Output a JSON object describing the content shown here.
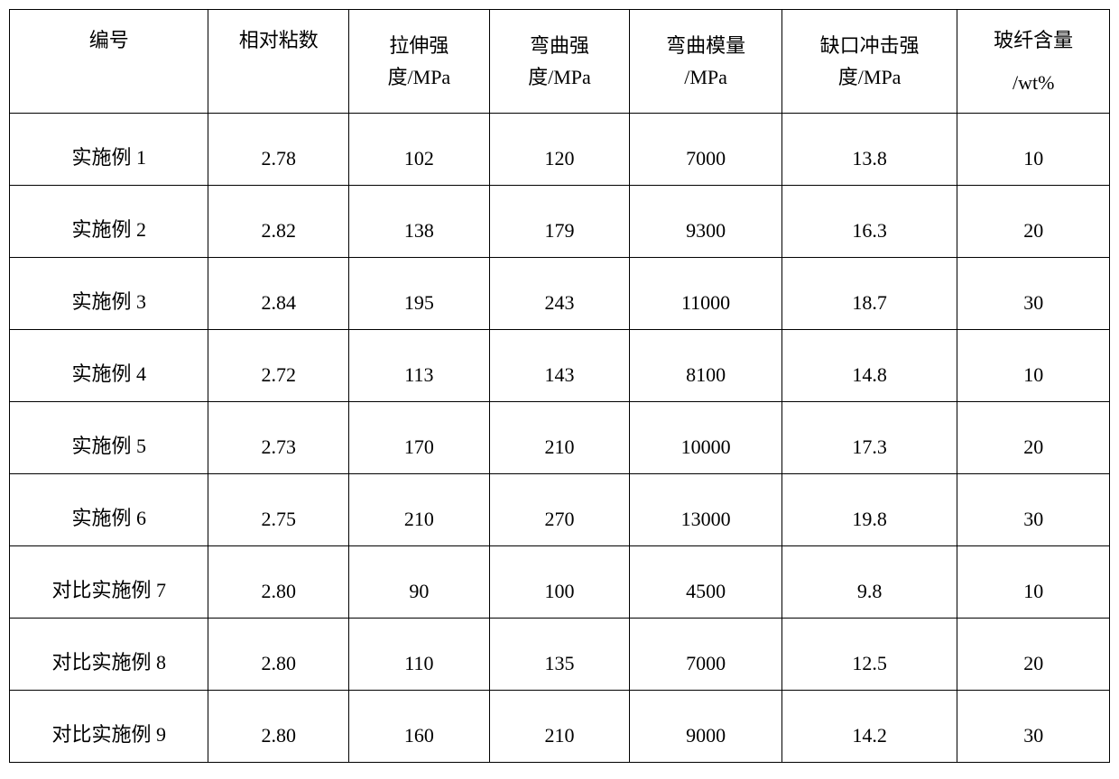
{
  "table": {
    "headers": [
      {
        "line1": "编号",
        "line2": ""
      },
      {
        "line1": "相对粘数",
        "line2": ""
      },
      {
        "line1": "拉伸强",
        "line2": "度/MPa"
      },
      {
        "line1": "弯曲强",
        "line2": "度/MPa"
      },
      {
        "line1": "弯曲模量",
        "line2": "/MPa"
      },
      {
        "line1": "缺口冲击强",
        "line2": "度/MPa"
      },
      {
        "line1": "玻纤含量",
        "line2": "/wt%"
      }
    ],
    "rows": [
      {
        "c0": "实施例 1",
        "c1": "2.78",
        "c2": "102",
        "c3": "120",
        "c4": "7000",
        "c5": "13.8",
        "c6": "10"
      },
      {
        "c0": "实施例 2",
        "c1": "2.82",
        "c2": "138",
        "c3": "179",
        "c4": "9300",
        "c5": "16.3",
        "c6": "20"
      },
      {
        "c0": "实施例 3",
        "c1": "2.84",
        "c2": "195",
        "c3": "243",
        "c4": "11000",
        "c5": "18.7",
        "c6": "30"
      },
      {
        "c0": "实施例 4",
        "c1": "2.72",
        "c2": "113",
        "c3": "143",
        "c4": "8100",
        "c5": "14.8",
        "c6": "10"
      },
      {
        "c0": "实施例 5",
        "c1": "2.73",
        "c2": "170",
        "c3": "210",
        "c4": "10000",
        "c5": "17.3",
        "c6": "20"
      },
      {
        "c0": "实施例 6",
        "c1": "2.75",
        "c2": "210",
        "c3": "270",
        "c4": "13000",
        "c5": "19.8",
        "c6": "30"
      },
      {
        "c0": "对比实施例 7",
        "c1": "2.80",
        "c2": "90",
        "c3": "100",
        "c4": "4500",
        "c5": "9.8",
        "c6": "10"
      },
      {
        "c0": "对比实施例 8",
        "c1": "2.80",
        "c2": "110",
        "c3": "135",
        "c4": "7000",
        "c5": "12.5",
        "c6": "20"
      },
      {
        "c0": "对比实施例 9",
        "c1": "2.80",
        "c2": "160",
        "c3": "210",
        "c4": "9000",
        "c5": "14.2",
        "c6": "30"
      }
    ]
  }
}
